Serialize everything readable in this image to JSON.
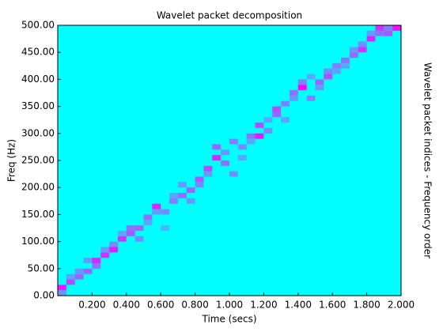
{
  "chart_data": {
    "type": "heatmap",
    "title": "Wavelet packet decomposition",
    "xlabel": "Time (secs)",
    "ylabel": "Freq (Hz)",
    "y2label": "Wavelet packet indices - Frequency order",
    "xlim": [
      0,
      2
    ],
    "xticks": [
      {
        "value": 0.2,
        "label": "0.200"
      },
      {
        "value": 0.4,
        "label": "0.400"
      },
      {
        "value": 0.6,
        "label": "0.600"
      },
      {
        "value": 0.8,
        "label": "0.800"
      },
      {
        "value": 1.0,
        "label": "1.000"
      },
      {
        "value": 1.2,
        "label": "1.200"
      },
      {
        "value": 1.4,
        "label": "1.400"
      },
      {
        "value": 1.6,
        "label": "1.600"
      },
      {
        "value": 1.8,
        "label": "1.800"
      },
      {
        "value": 2.0,
        "label": "2.000"
      }
    ],
    "ylim": [
      0,
      500
    ],
    "yticks": [
      {
        "value": 0,
        "label": "0.00"
      },
      {
        "value": 50,
        "label": "50.00"
      },
      {
        "value": 100,
        "label": "100.00"
      },
      {
        "value": 150,
        "label": "150.00"
      },
      {
        "value": 200,
        "label": "200.00"
      },
      {
        "value": 250,
        "label": "250.00"
      },
      {
        "value": 300,
        "label": "300.00"
      },
      {
        "value": 350,
        "label": "350.00"
      },
      {
        "value": 400,
        "label": "400.00"
      },
      {
        "value": 450,
        "label": "450.00"
      },
      {
        "value": 500,
        "label": "500.00"
      }
    ],
    "colormap": "cool",
    "background_value": 0,
    "cells": [
      [
        0,
        0.05,
        10,
        20,
        0.9
      ],
      [
        0,
        0.05,
        0,
        10,
        0.4
      ],
      [
        0.05,
        0.1,
        20,
        30,
        0.7
      ],
      [
        0.05,
        0.1,
        30,
        40,
        0.35
      ],
      [
        0.1,
        0.15,
        30,
        40,
        0.6
      ],
      [
        0.1,
        0.15,
        40,
        50,
        0.4
      ],
      [
        0.15,
        0.2,
        40,
        50,
        0.6
      ],
      [
        0.15,
        0.2,
        60,
        70,
        0.4
      ],
      [
        0.2,
        0.25,
        60,
        70,
        0.85
      ],
      [
        0.2,
        0.25,
        50,
        60,
        0.55
      ],
      [
        0.25,
        0.3,
        70,
        80,
        0.8
      ],
      [
        0.25,
        0.3,
        80,
        90,
        0.4
      ],
      [
        0.3,
        0.35,
        80,
        90,
        0.9
      ],
      [
        0.3,
        0.35,
        90,
        100,
        0.45
      ],
      [
        0.35,
        0.4,
        100,
        110,
        0.8
      ],
      [
        0.35,
        0.4,
        110,
        120,
        0.35
      ],
      [
        0.4,
        0.45,
        110,
        120,
        0.65
      ],
      [
        0.4,
        0.45,
        120,
        130,
        0.55
      ],
      [
        0.45,
        0.5,
        120,
        130,
        0.6
      ],
      [
        0.45,
        0.5,
        100,
        110,
        0.45
      ],
      [
        0.5,
        0.55,
        140,
        150,
        0.55
      ],
      [
        0.5,
        0.55,
        130,
        140,
        0.35
      ],
      [
        0.55,
        0.6,
        160,
        170,
        0.85
      ],
      [
        0.55,
        0.6,
        150,
        160,
        0.4
      ],
      [
        0.6,
        0.65,
        150,
        160,
        0.45
      ],
      [
        0.6,
        0.65,
        120,
        130,
        0.3
      ],
      [
        0.65,
        0.7,
        170,
        180,
        0.5
      ],
      [
        0.65,
        0.7,
        180,
        190,
        0.35
      ],
      [
        0.7,
        0.75,
        180,
        190,
        0.55
      ],
      [
        0.7,
        0.75,
        200,
        210,
        0.4
      ],
      [
        0.75,
        0.8,
        190,
        200,
        0.6
      ],
      [
        0.75,
        0.8,
        170,
        180,
        0.4
      ],
      [
        0.8,
        0.85,
        210,
        220,
        0.65
      ],
      [
        0.8,
        0.85,
        200,
        210,
        0.45
      ],
      [
        0.85,
        0.9,
        230,
        240,
        0.7
      ],
      [
        0.85,
        0.9,
        220,
        230,
        0.4
      ],
      [
        0.9,
        0.95,
        250,
        260,
        0.85
      ],
      [
        0.9,
        0.95,
        270,
        280,
        0.6
      ],
      [
        0.95,
        1.0,
        240,
        250,
        0.55
      ],
      [
        0.95,
        1.0,
        260,
        270,
        0.4
      ],
      [
        1.0,
        1.05,
        220,
        230,
        0.45
      ],
      [
        1.0,
        1.05,
        280,
        290,
        0.5
      ],
      [
        1.05,
        1.1,
        270,
        280,
        0.45
      ],
      [
        1.05,
        1.1,
        250,
        260,
        0.35
      ],
      [
        1.1,
        1.15,
        290,
        300,
        0.55
      ],
      [
        1.1,
        1.15,
        280,
        290,
        0.35
      ],
      [
        1.15,
        1.2,
        290,
        300,
        0.9
      ],
      [
        1.15,
        1.2,
        310,
        320,
        0.7
      ],
      [
        1.2,
        1.25,
        300,
        310,
        0.45
      ],
      [
        1.2,
        1.25,
        320,
        330,
        0.35
      ],
      [
        1.25,
        1.3,
        330,
        340,
        0.6
      ],
      [
        1.25,
        1.3,
        340,
        350,
        0.7
      ],
      [
        1.3,
        1.35,
        350,
        360,
        0.5
      ],
      [
        1.3,
        1.35,
        320,
        330,
        0.35
      ],
      [
        1.35,
        1.4,
        370,
        380,
        0.55
      ],
      [
        1.35,
        1.4,
        360,
        370,
        0.4
      ],
      [
        1.4,
        1.45,
        380,
        390,
        1.0
      ],
      [
        1.4,
        1.45,
        390,
        400,
        0.5
      ],
      [
        1.45,
        1.5,
        360,
        370,
        0.5
      ],
      [
        1.45,
        1.5,
        400,
        410,
        0.35
      ],
      [
        1.5,
        1.55,
        390,
        400,
        0.6
      ],
      [
        1.5,
        1.55,
        380,
        390,
        0.4
      ],
      [
        1.55,
        1.6,
        400,
        410,
        0.7
      ],
      [
        1.55,
        1.6,
        410,
        420,
        0.45
      ],
      [
        1.6,
        1.65,
        420,
        430,
        0.5
      ],
      [
        1.6,
        1.65,
        410,
        420,
        0.35
      ],
      [
        1.65,
        1.7,
        430,
        440,
        0.55
      ],
      [
        1.65,
        1.7,
        420,
        430,
        0.35
      ],
      [
        1.7,
        1.75,
        440,
        450,
        0.6
      ],
      [
        1.7,
        1.75,
        450,
        460,
        0.4
      ],
      [
        1.75,
        1.8,
        450,
        460,
        0.8
      ],
      [
        1.75,
        1.8,
        460,
        470,
        0.45
      ],
      [
        1.8,
        1.85,
        470,
        480,
        0.85
      ],
      [
        1.8,
        1.85,
        480,
        490,
        0.4
      ],
      [
        1.85,
        1.9,
        490,
        500,
        0.8
      ],
      [
        1.85,
        1.9,
        480,
        490,
        0.55
      ],
      [
        1.9,
        1.95,
        480,
        490,
        0.65
      ],
      [
        1.9,
        1.95,
        490,
        500,
        0.5
      ],
      [
        1.95,
        2.0,
        490,
        500,
        0.95
      ]
    ]
  }
}
